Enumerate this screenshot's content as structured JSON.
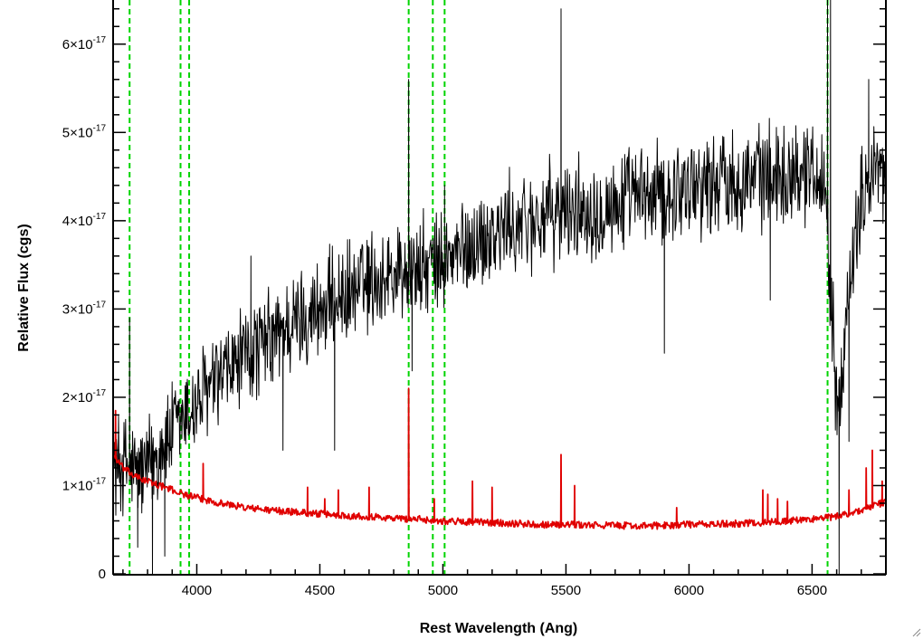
{
  "chart_data": {
    "type": "line",
    "title": "",
    "xlabel": "Rest Wavelength (Ang)",
    "ylabel": "Relative Flux (cgs)",
    "xlim": [
      3660,
      6800
    ],
    "ylim": [
      -1e-19,
      6.5e-17
    ],
    "grid": false,
    "x_ticks": [
      {
        "value": 4000,
        "label": "4000"
      },
      {
        "value": 4500,
        "label": "4500"
      },
      {
        "value": 5000,
        "label": "5000"
      },
      {
        "value": 5500,
        "label": "5500"
      },
      {
        "value": 6000,
        "label": "6000"
      },
      {
        "value": 6500,
        "label": "6500"
      }
    ],
    "y_ticks": [
      {
        "value": 0,
        "mantissa": "0",
        "exponent": ""
      },
      {
        "value": 1e-17,
        "mantissa": "1×10",
        "exponent": "-17"
      },
      {
        "value": 2e-17,
        "mantissa": "2×10",
        "exponent": "-17"
      },
      {
        "value": 3e-17,
        "mantissa": "3×10",
        "exponent": "-17"
      },
      {
        "value": 4e-17,
        "mantissa": "4×10",
        "exponent": "-17"
      },
      {
        "value": 5e-17,
        "mantissa": "5×10",
        "exponent": "-17"
      },
      {
        "value": 6e-17,
        "mantissa": "6×10",
        "exponent": "-17"
      }
    ],
    "vertical_lines": [
      3727,
      3934,
      3969,
      4861,
      4959,
      5007,
      6563
    ],
    "series": [
      {
        "color": "#000000",
        "anchors_x": [
          3660,
          3700,
          3750,
          3800,
          3850,
          3900,
          3950,
          4000,
          4100,
          4200,
          4300,
          4400,
          4500,
          4600,
          4700,
          4800,
          4900,
          5000,
          5100,
          5200,
          5300,
          5400,
          5500,
          5600,
          5700,
          5800,
          5900,
          6000,
          6100,
          6200,
          6300,
          6400,
          6500,
          6550,
          6600,
          6650,
          6700,
          6750,
          6800
        ],
        "anchors_y": [
          1.2e-17,
          1.25e-17,
          1.15e-17,
          1.2e-17,
          1.4e-17,
          1.6e-17,
          1.75e-17,
          1.95e-17,
          2.2e-17,
          2.45e-17,
          2.65e-17,
          2.85e-17,
          3e-17,
          3.15e-17,
          3.3e-17,
          3.4e-17,
          3.45e-17,
          3.5e-17,
          3.7e-17,
          3.85e-17,
          3.95e-17,
          4.05e-17,
          4.1e-17,
          4.15e-17,
          4.2e-17,
          4.25e-17,
          4.3e-17,
          4.4e-17,
          4.45e-17,
          4.5e-17,
          4.5e-17,
          4.55e-17,
          4.6e-17,
          4.5e-17,
          2e-17,
          3e-17,
          4.3e-17,
          4.6e-17,
          4.4e-17
        ],
        "noise_amplitude": 5e-18,
        "spikes": [
          {
            "x": 3727,
            "y": 2.9e-17
          },
          {
            "x": 3760,
            "y": 3e-18
          },
          {
            "x": 3820,
            "y": -3e-18
          },
          {
            "x": 3870,
            "y": 2e-18
          },
          {
            "x": 4220,
            "y": 3.6e-17
          },
          {
            "x": 4350,
            "y": 1.4e-17
          },
          {
            "x": 4560,
            "y": 1.4e-17
          },
          {
            "x": 4700,
            "y": 3.7e-17
          },
          {
            "x": 4861,
            "y": 5.6e-17
          },
          {
            "x": 4875,
            "y": 2.3e-17
          },
          {
            "x": 5007,
            "y": 4.4e-17
          },
          {
            "x": 5480,
            "y": 6.4e-17
          },
          {
            "x": 5900,
            "y": 2.5e-17
          },
          {
            "x": 6330,
            "y": 3.1e-17
          },
          {
            "x": 6563,
            "y": 6.6e-17
          },
          {
            "x": 6575,
            "y": 6.6e-17
          },
          {
            "x": 6610,
            "y": -3e-18
          },
          {
            "x": 6650,
            "y": 1.5e-17
          },
          {
            "x": 6730,
            "y": 5.6e-17
          }
        ]
      },
      {
        "color": "#e00000",
        "anchors_x": [
          3660,
          3700,
          3750,
          3800,
          3850,
          3900,
          3950,
          4000,
          4100,
          4200,
          4300,
          4400,
          4500,
          4600,
          4700,
          4800,
          4900,
          5000,
          5100,
          5200,
          5300,
          5400,
          5500,
          5600,
          5700,
          5800,
          5900,
          6000,
          6100,
          6200,
          6300,
          6400,
          6500,
          6600,
          6700,
          6800
        ],
        "anchors_y": [
          1.35e-17,
          1.2e-17,
          1.1e-17,
          1.05e-17,
          1e-17,
          9.5e-18,
          9e-18,
          8.6e-18,
          8e-18,
          7.5e-18,
          7.2e-18,
          7e-18,
          6.8e-18,
          6.6e-18,
          6.5e-18,
          6.3e-18,
          6.2e-18,
          6e-18,
          5.9e-18,
          5.8e-18,
          5.7e-18,
          5.6e-18,
          5.6e-18,
          5.5e-18,
          5.5e-18,
          5.4e-18,
          5.5e-18,
          5.6e-18,
          5.6e-18,
          5.7e-18,
          5.8e-18,
          6e-18,
          6.2e-18,
          6.5e-18,
          7.2e-18,
          8.2e-18
        ],
        "noise_amplitude": 4e-19,
        "spikes": [
          {
            "x": 3670,
            "y": 1.85e-17
          },
          {
            "x": 4026,
            "y": 1.25e-17
          },
          {
            "x": 4450,
            "y": 9.8e-18
          },
          {
            "x": 4520,
            "y": 8.5e-18
          },
          {
            "x": 4575,
            "y": 9.5e-18
          },
          {
            "x": 4700,
            "y": 9.8e-18
          },
          {
            "x": 4861,
            "y": 2.1e-17
          },
          {
            "x": 4965,
            "y": 8.5e-18
          },
          {
            "x": 5120,
            "y": 1.05e-17
          },
          {
            "x": 5200,
            "y": 9.8e-18
          },
          {
            "x": 5480,
            "y": 1.35e-17
          },
          {
            "x": 5535,
            "y": 1e-17
          },
          {
            "x": 5950,
            "y": 7.5e-18
          },
          {
            "x": 6300,
            "y": 9.5e-18
          },
          {
            "x": 6320,
            "y": 9e-18
          },
          {
            "x": 6360,
            "y": 8.5e-18
          },
          {
            "x": 6400,
            "y": 8.2e-18
          },
          {
            "x": 6650,
            "y": 9.5e-18
          },
          {
            "x": 6720,
            "y": 1.2e-17
          },
          {
            "x": 6745,
            "y": 1.4e-17
          },
          {
            "x": 6785,
            "y": 1.05e-17
          }
        ]
      }
    ]
  },
  "colors": {
    "guide_lines": "#00d400",
    "axes": "#000000"
  }
}
